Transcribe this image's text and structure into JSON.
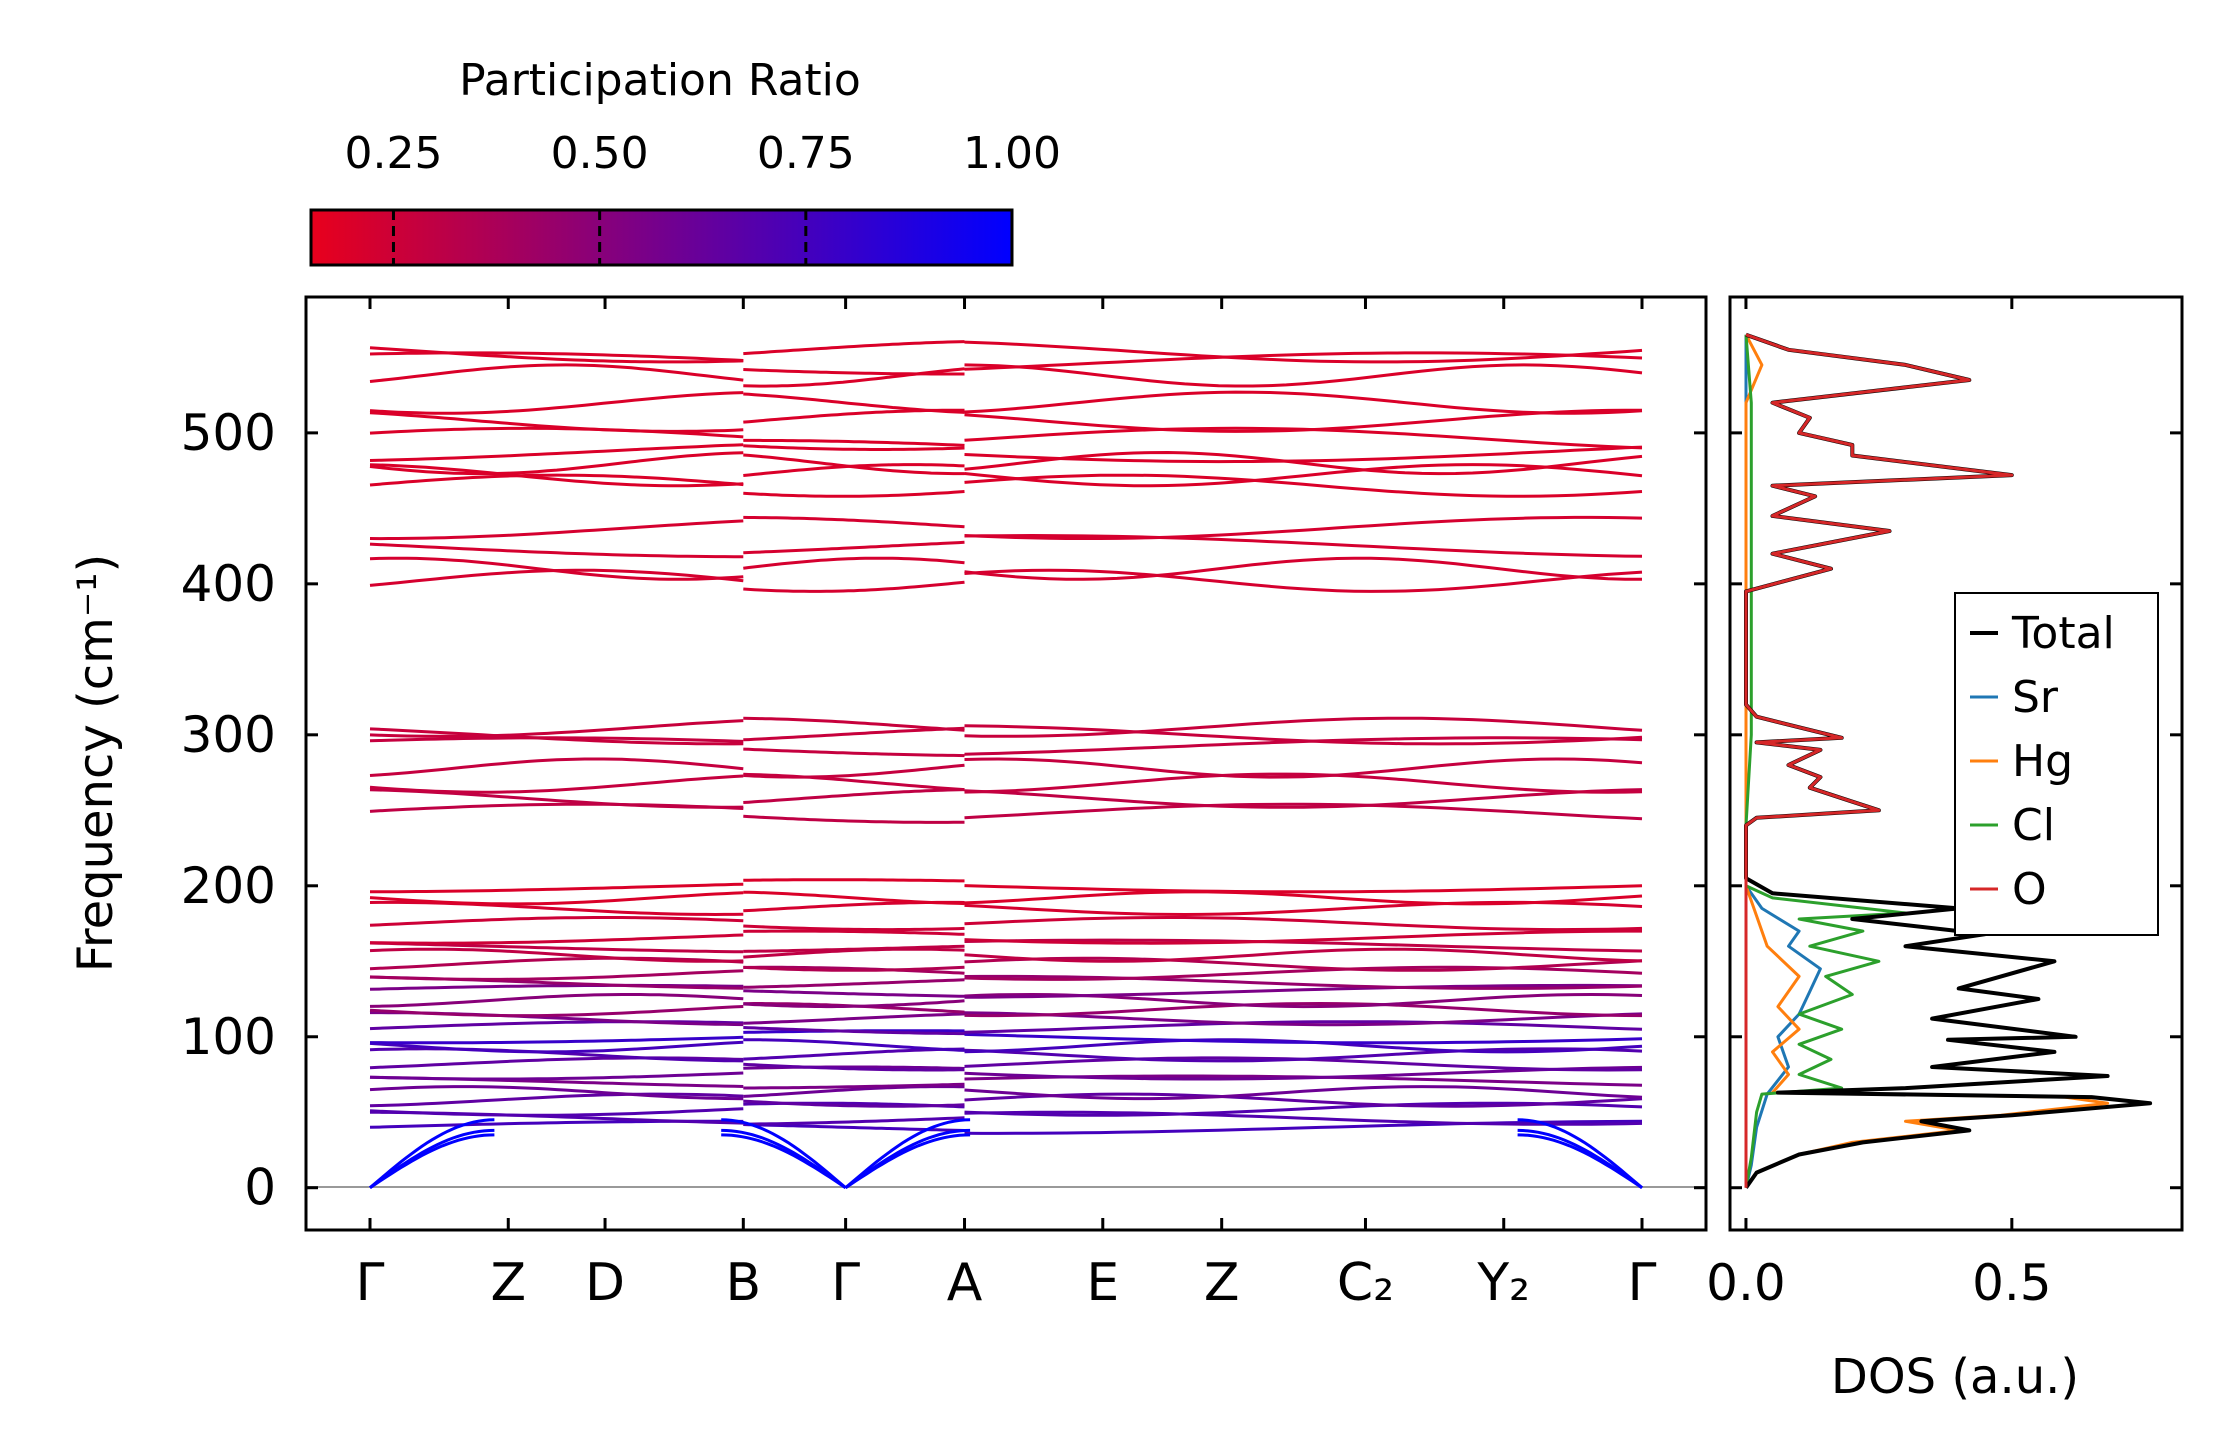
{
  "colors": {
    "pr_low": "#e8001c",
    "pr_high": "#0000ff",
    "total": "#000000",
    "sr": "#1f77b4",
    "hg": "#ff7f0e",
    "cl": "#2ca02c",
    "o": "#d62728"
  },
  "chart_data": [
    {
      "type": "line",
      "title": "",
      "xlabel": "",
      "ylabel": "Frequency (cm⁻¹)",
      "ylim": [
        -28,
        590
      ],
      "yticks": [
        0,
        100,
        200,
        300,
        400,
        500
      ],
      "kpath": [
        {
          "label": "Γ",
          "x": 0.0
        },
        {
          "label": "Z",
          "x": 0.5
        },
        {
          "label": "D",
          "x": 0.85
        },
        {
          "label": "B",
          "x": 1.35
        },
        {
          "label": "Γ",
          "x": 1.72
        },
        {
          "label": "A",
          "x": 2.15
        },
        {
          "label": "E",
          "x": 2.65
        },
        {
          "label": "Z",
          "x": 3.08
        },
        {
          "label": "C₂",
          "x": 3.6
        },
        {
          "label": "Y₂",
          "x": 4.1
        },
        {
          "label": "Γ",
          "x": 4.6
        }
      ],
      "breaks": [
        1.35,
        2.15
      ],
      "colorbar": {
        "label": "Participation Ratio",
        "range": [
          0.15,
          1.0
        ],
        "ticks": [
          0.25,
          0.5,
          0.75,
          1.0
        ],
        "tick_labels": [
          "0.25",
          "0.50",
          "0.75",
          "1.00"
        ]
      },
      "acoustic_branches": [
        {
          "start": 0,
          "top": 35,
          "participation": 1.0
        },
        {
          "start": 0,
          "top": 38,
          "participation": 1.0
        },
        {
          "start": 0,
          "top": 45,
          "participation": 1.0
        }
      ],
      "optical_bands": [
        {
          "freq": 40,
          "participation": 0.75
        },
        {
          "freq": 46,
          "participation": 0.7
        },
        {
          "freq": 52,
          "participation": 0.7
        },
        {
          "freq": 58,
          "participation": 0.65
        },
        {
          "freq": 63,
          "participation": 0.6
        },
        {
          "freq": 70,
          "participation": 0.55
        },
        {
          "freq": 76,
          "participation": 0.6
        },
        {
          "freq": 82,
          "participation": 0.65
        },
        {
          "freq": 88,
          "participation": 0.7
        },
        {
          "freq": 94,
          "participation": 0.75
        },
        {
          "freq": 100,
          "participation": 0.8
        },
        {
          "freq": 106,
          "participation": 0.65
        },
        {
          "freq": 112,
          "participation": 0.55
        },
        {
          "freq": 118,
          "participation": 0.45
        },
        {
          "freq": 124,
          "participation": 0.5
        },
        {
          "freq": 130,
          "participation": 0.55
        },
        {
          "freq": 136,
          "participation": 0.45
        },
        {
          "freq": 142,
          "participation": 0.4
        },
        {
          "freq": 148,
          "participation": 0.35
        },
        {
          "freq": 154,
          "participation": 0.3
        },
        {
          "freq": 160,
          "participation": 0.3
        },
        {
          "freq": 166,
          "participation": 0.25
        },
        {
          "freq": 175,
          "participation": 0.25
        },
        {
          "freq": 185,
          "participation": 0.22
        },
        {
          "freq": 192,
          "participation": 0.2
        },
        {
          "freq": 200,
          "participation": 0.2
        },
        {
          "freq": 248,
          "participation": 0.3
        },
        {
          "freq": 258,
          "participation": 0.3
        },
        {
          "freq": 268,
          "participation": 0.28
        },
        {
          "freq": 278,
          "participation": 0.28
        },
        {
          "freq": 292,
          "participation": 0.28
        },
        {
          "freq": 300,
          "participation": 0.27
        },
        {
          "freq": 305,
          "participation": 0.27
        },
        {
          "freq": 402,
          "participation": 0.22
        },
        {
          "freq": 410,
          "participation": 0.22
        },
        {
          "freq": 425,
          "participation": 0.22
        },
        {
          "freq": 437,
          "participation": 0.22
        },
        {
          "freq": 465,
          "participation": 0.2
        },
        {
          "freq": 472,
          "participation": 0.2
        },
        {
          "freq": 480,
          "participation": 0.2
        },
        {
          "freq": 488,
          "participation": 0.2
        },
        {
          "freq": 496,
          "participation": 0.2
        },
        {
          "freq": 508,
          "participation": 0.2
        },
        {
          "freq": 520,
          "participation": 0.2
        },
        {
          "freq": 538,
          "participation": 0.2
        },
        {
          "freq": 546,
          "participation": 0.2
        },
        {
          "freq": 554,
          "participation": 0.2
        }
      ]
    },
    {
      "type": "line",
      "title": "",
      "xlabel": "DOS (a.u.)",
      "ylabel": "",
      "xlim": [
        -0.03,
        0.82
      ],
      "ylim": [
        -28,
        590
      ],
      "xticks": [
        0.0,
        0.5
      ],
      "xtick_labels": [
        "0.0",
        "0.5"
      ],
      "legend_position": "center-right",
      "legend": [
        "Total",
        "Sr",
        "Hg",
        "Cl",
        "O"
      ],
      "series": [
        {
          "name": "Total",
          "points": [
            [
              0,
              0
            ],
            [
              0.02,
              10
            ],
            [
              0.1,
              22
            ],
            [
              0.22,
              30
            ],
            [
              0.42,
              38
            ],
            [
              0.33,
              44
            ],
            [
              0.5,
              48
            ],
            [
              0.76,
              56
            ],
            [
              0.65,
              60
            ],
            [
              0.06,
              63
            ],
            [
              0.3,
              66
            ],
            [
              0.68,
              74
            ],
            [
              0.35,
              80
            ],
            [
              0.58,
              90
            ],
            [
              0.38,
              98
            ],
            [
              0.62,
              100
            ],
            [
              0.35,
              112
            ],
            [
              0.55,
              125
            ],
            [
              0.4,
              132
            ],
            [
              0.58,
              150
            ],
            [
              0.3,
              160
            ],
            [
              0.45,
              168
            ],
            [
              0.2,
              178
            ],
            [
              0.4,
              185
            ],
            [
              0.05,
              195
            ],
            [
              0,
              205
            ],
            [
              0,
              240
            ],
            [
              0.02,
              245
            ],
            [
              0.25,
              250
            ],
            [
              0.18,
              258
            ],
            [
              0.12,
              265
            ],
            [
              0.14,
              272
            ],
            [
              0.08,
              280
            ],
            [
              0.14,
              290
            ],
            [
              0.02,
              295
            ],
            [
              0.18,
              298
            ],
            [
              0.1,
              305
            ],
            [
              0.02,
              312
            ],
            [
              0,
              320
            ],
            [
              0,
              395
            ],
            [
              0.16,
              410
            ],
            [
              0.05,
              420
            ],
            [
              0.27,
              435
            ],
            [
              0.05,
              445
            ],
            [
              0.13,
              458
            ],
            [
              0.05,
              465
            ],
            [
              0.5,
              472
            ],
            [
              0.2,
              485
            ],
            [
              0.2,
              492
            ],
            [
              0.1,
              500
            ],
            [
              0.12,
              510
            ],
            [
              0.05,
              520
            ],
            [
              0.42,
              535
            ],
            [
              0.3,
              545
            ],
            [
              0.08,
              555
            ],
            [
              0,
              565
            ]
          ]
        },
        {
          "name": "Sr",
          "points": [
            [
              0,
              0
            ],
            [
              0.01,
              15
            ],
            [
              0.02,
              40
            ],
            [
              0.04,
              62
            ],
            [
              0.08,
              80
            ],
            [
              0.06,
              100
            ],
            [
              0.1,
              115
            ],
            [
              0.12,
              130
            ],
            [
              0.14,
              145
            ],
            [
              0.08,
              160
            ],
            [
              0.1,
              170
            ],
            [
              0.03,
              185
            ],
            [
              0,
              200
            ],
            [
              0,
              565
            ]
          ]
        },
        {
          "name": "Hg",
          "points": [
            [
              0,
              0
            ],
            [
              0.02,
              10
            ],
            [
              0.1,
              22
            ],
            [
              0.2,
              30
            ],
            [
              0.4,
              38
            ],
            [
              0.3,
              44
            ],
            [
              0.48,
              48
            ],
            [
              0.68,
              56
            ],
            [
              0.6,
              60
            ],
            [
              0.05,
              63
            ],
            [
              0.08,
              75
            ],
            [
              0.05,
              90
            ],
            [
              0.1,
              105
            ],
            [
              0.06,
              120
            ],
            [
              0.1,
              140
            ],
            [
              0.04,
              160
            ],
            [
              0.02,
              180
            ],
            [
              0,
              200
            ],
            [
              0,
              520
            ],
            [
              0.03,
              545
            ],
            [
              0,
              565
            ]
          ]
        },
        {
          "name": "Cl",
          "points": [
            [
              0,
              0
            ],
            [
              0.01,
              20
            ],
            [
              0.02,
              50
            ],
            [
              0.03,
              62
            ],
            [
              0.18,
              66
            ],
            [
              0.1,
              75
            ],
            [
              0.16,
              85
            ],
            [
              0.1,
              95
            ],
            [
              0.18,
              105
            ],
            [
              0.1,
              115
            ],
            [
              0.2,
              128
            ],
            [
              0.15,
              140
            ],
            [
              0.25,
              150
            ],
            [
              0.12,
              160
            ],
            [
              0.22,
              170
            ],
            [
              0.1,
              178
            ],
            [
              0.3,
              182
            ],
            [
              0.05,
              192
            ],
            [
              0,
              200
            ],
            [
              0,
              240
            ],
            [
              0.01,
              300
            ],
            [
              0.01,
              450
            ],
            [
              0.01,
              520
            ],
            [
              0,
              565
            ]
          ]
        },
        {
          "name": "O",
          "points": [
            [
              0,
              0
            ],
            [
              0,
              200
            ],
            [
              0,
              240
            ],
            [
              0.02,
              245
            ],
            [
              0.25,
              250
            ],
            [
              0.18,
              258
            ],
            [
              0.12,
              265
            ],
            [
              0.14,
              272
            ],
            [
              0.08,
              280
            ],
            [
              0.14,
              290
            ],
            [
              0.02,
              295
            ],
            [
              0.18,
              298
            ],
            [
              0.1,
              305
            ],
            [
              0.02,
              312
            ],
            [
              0,
              320
            ],
            [
              0,
              395
            ],
            [
              0.16,
              410
            ],
            [
              0.05,
              420
            ],
            [
              0.27,
              435
            ],
            [
              0.05,
              445
            ],
            [
              0.13,
              458
            ],
            [
              0.05,
              465
            ],
            [
              0.5,
              472
            ],
            [
              0.2,
              485
            ],
            [
              0.2,
              492
            ],
            [
              0.1,
              500
            ],
            [
              0.12,
              510
            ],
            [
              0.05,
              520
            ],
            [
              0.42,
              535
            ],
            [
              0.3,
              545
            ],
            [
              0.08,
              555
            ],
            [
              0,
              565
            ]
          ]
        }
      ]
    }
  ]
}
